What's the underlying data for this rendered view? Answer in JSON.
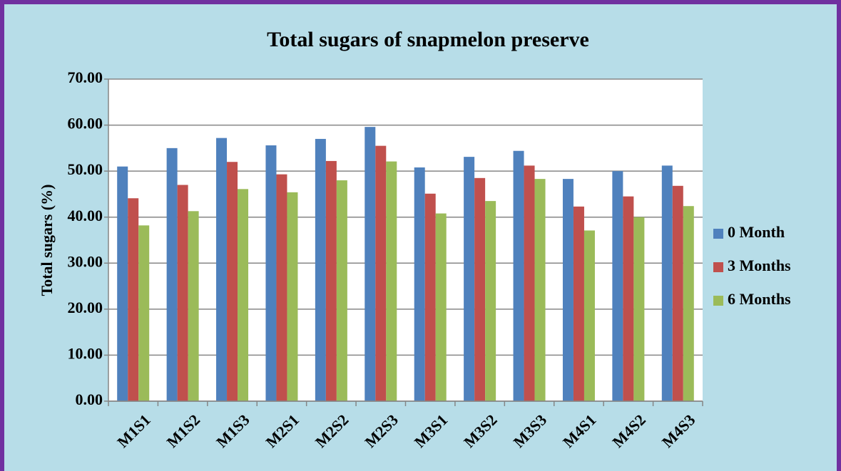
{
  "chart_data": {
    "type": "bar",
    "title": "Total sugars of snapmelon preserve",
    "y_label": "Total sugars (%)",
    "categories": [
      "M1S1",
      "M1S2",
      "M1S3",
      "M2S1",
      "M2S2",
      "M2S3",
      "M3S1",
      "M3S2",
      "M3S3",
      "M4S1",
      "M4S2",
      "M4S3"
    ],
    "series": [
      {
        "name": "0 Month",
        "color": "#4f81bd",
        "values": [
          51.0,
          55.0,
          57.2,
          55.6,
          57.0,
          59.6,
          50.8,
          53.1,
          54.4,
          48.3,
          50.0,
          51.2
        ]
      },
      {
        "name": "3 Months",
        "color": "#c0504d",
        "values": [
          44.1,
          47.0,
          52.0,
          49.3,
          52.2,
          55.5,
          45.1,
          48.5,
          51.2,
          42.3,
          44.5,
          46.8
        ]
      },
      {
        "name": "6 Months",
        "color": "#9bbb59",
        "values": [
          38.2,
          41.3,
          46.1,
          45.4,
          48.0,
          52.1,
          40.8,
          43.5,
          48.3,
          37.1,
          40.0,
          42.4
        ]
      }
    ],
    "ylim": [
      0,
      70
    ],
    "yticks": [
      {
        "value": 0,
        "label": "0.00"
      },
      {
        "value": 10,
        "label": "10.00"
      },
      {
        "value": 20,
        "label": "20.00"
      },
      {
        "value": 30,
        "label": "30.00"
      },
      {
        "value": 40,
        "label": "40.00"
      },
      {
        "value": 50,
        "label": "50.00"
      },
      {
        "value": 60,
        "label": "60.00"
      },
      {
        "value": 70,
        "label": "70.00"
      }
    ],
    "grid": true,
    "legend": "right"
  }
}
